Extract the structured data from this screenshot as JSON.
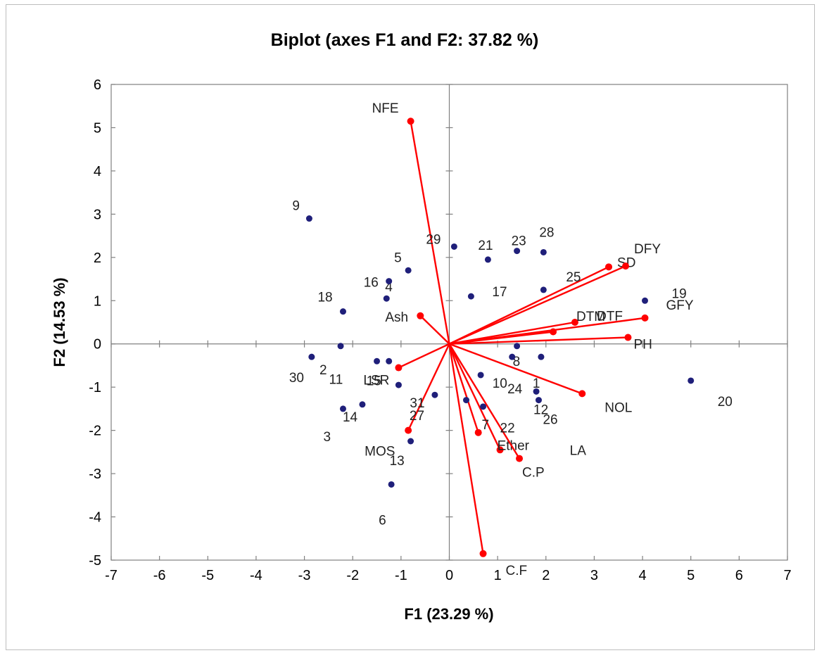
{
  "chart_data": {
    "type": "scatter",
    "title": "Biplot (axes F1 and F2: 37.82 %)",
    "xlabel": "F1 (23.29 %)",
    "ylabel": "F2 (14.53 %)",
    "xlim": [
      -7,
      7
    ],
    "ylim": [
      -5,
      6
    ],
    "xticks": [
      "-7",
      "-6",
      "-5",
      "-4",
      "-3",
      "-2",
      "-1",
      "0",
      "1",
      "2",
      "3",
      "4",
      "5",
      "6",
      "7"
    ],
    "yticks": [
      "-5",
      "-4",
      "-3",
      "-2",
      "-1",
      "0",
      "1",
      "2",
      "3",
      "4",
      "5",
      "6"
    ],
    "colors": {
      "observations": "#1f1f7a",
      "variables": "#ff0000",
      "axes": "#808080"
    },
    "observations": [
      {
        "label": "1",
        "x": 1.9,
        "y": -0.3
      },
      {
        "label": "2",
        "x": -2.25,
        "y": -0.05
      },
      {
        "label": "3",
        "x": -2.2,
        "y": -1.5
      },
      {
        "label": "4",
        "x": -1.3,
        "y": 1.05
      },
      {
        "label": "5",
        "x": -0.85,
        "y": 1.7
      },
      {
        "label": "6",
        "x": -1.2,
        "y": -3.25
      },
      {
        "label": "7",
        "x": 0.7,
        "y": -1.45
      },
      {
        "label": "8",
        "x": 1.4,
        "y": -0.05
      },
      {
        "label": "9",
        "x": -2.9,
        "y": 2.9
      },
      {
        "label": "10",
        "x": 1.3,
        "y": -0.3
      },
      {
        "label": "11",
        "x": -1.5,
        "y": -0.4
      },
      {
        "label": "12",
        "x": 1.8,
        "y": -1.1
      },
      {
        "label": "13",
        "x": -0.8,
        "y": -2.25
      },
      {
        "label": "14",
        "x": -1.8,
        "y": -1.4
      },
      {
        "label": "15",
        "x": -1.25,
        "y": -0.4
      },
      {
        "label": "16",
        "x": -1.25,
        "y": 1.45
      },
      {
        "label": "17",
        "x": 0.45,
        "y": 1.1
      },
      {
        "label": "18",
        "x": -2.2,
        "y": 0.75
      },
      {
        "label": "19",
        "x": 4.05,
        "y": 1.0
      },
      {
        "label": "20",
        "x": 5.0,
        "y": -0.85
      },
      {
        "label": "21",
        "x": 0.8,
        "y": 1.95
      },
      {
        "label": "22",
        "x": 0.35,
        "y": -1.3
      },
      {
        "label": "23",
        "x": 1.4,
        "y": 2.15
      },
      {
        "label": "24",
        "x": 0.65,
        "y": -0.72
      },
      {
        "label": "25",
        "x": 1.95,
        "y": 1.25
      },
      {
        "label": "26",
        "x": 1.85,
        "y": -1.3
      },
      {
        "label": "27",
        "x": -0.3,
        "y": -1.18
      },
      {
        "label": "28",
        "x": 1.95,
        "y": 2.12
      },
      {
        "label": "29",
        "x": 0.1,
        "y": 2.25
      },
      {
        "label": "30",
        "x": -2.85,
        "y": -0.3
      },
      {
        "label": "31",
        "x": -1.05,
        "y": -0.95
      }
    ],
    "variables": [
      {
        "label": "NFE",
        "x": -0.8,
        "y": 5.15
      },
      {
        "label": "Ash",
        "x": -0.6,
        "y": 0.65
      },
      {
        "label": "SD",
        "x": 3.3,
        "y": 1.78
      },
      {
        "label": "DFY",
        "x": 3.65,
        "y": 1.8
      },
      {
        "label": "DTF",
        "x": 2.15,
        "y": 0.28
      },
      {
        "label": "DTM",
        "x": 2.6,
        "y": 0.5
      },
      {
        "label": "GFY",
        "x": 4.05,
        "y": 0.6
      },
      {
        "label": "PH",
        "x": 3.7,
        "y": 0.15
      },
      {
        "label": "NOL",
        "x": 2.75,
        "y": -1.15
      },
      {
        "label": "LSR",
        "x": -1.05,
        "y": -0.55
      },
      {
        "label": "MOS",
        "x": -0.85,
        "y": -2.0
      },
      {
        "label": "Ether",
        "x": 1.05,
        "y": -2.45
      },
      {
        "label": "C.P",
        "x": 1.45,
        "y": -2.65
      },
      {
        "label": "LA",
        "x": 0.6,
        "y": -2.05
      },
      {
        "label": "C.F",
        "x": 0.7,
        "y": -4.85
      }
    ]
  }
}
